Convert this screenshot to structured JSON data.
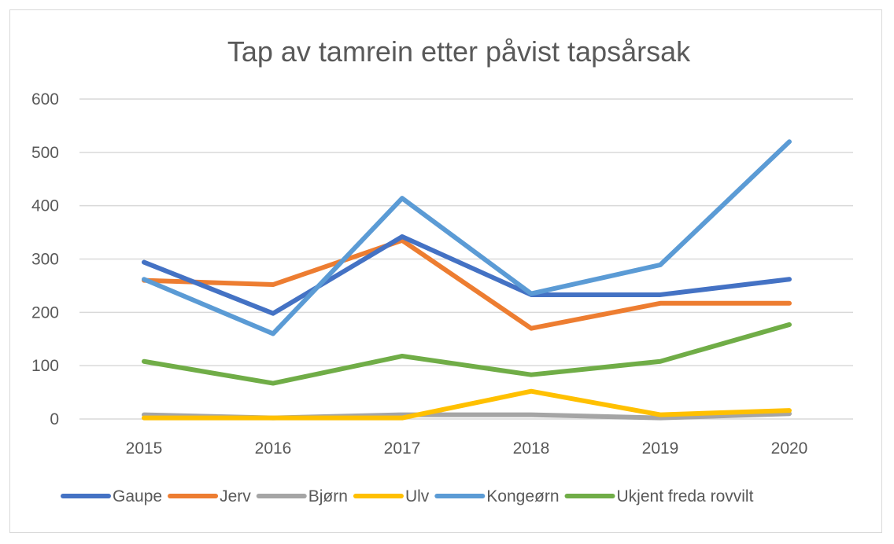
{
  "chart_data": {
    "type": "line",
    "title": "Tap av tamrein etter påvist tapsårsak",
    "xlabel": "",
    "ylabel": "",
    "x": [
      "2015",
      "2016",
      "2017",
      "2018",
      "2019",
      "2020"
    ],
    "ylim": [
      0,
      600
    ],
    "yticks": [
      "0",
      "100",
      "200",
      "300",
      "400",
      "500",
      "600"
    ],
    "grid": true,
    "legend_position": "bottom",
    "series": [
      {
        "name": "Gaupe",
        "color": "#4472C4",
        "values": [
          294,
          198,
          342,
          233,
          233,
          262
        ]
      },
      {
        "name": "Jerv",
        "color": "#ED7D31",
        "values": [
          260,
          252,
          335,
          170,
          217,
          217
        ]
      },
      {
        "name": "Bjørn",
        "color": "#A5A5A5",
        "values": [
          8,
          2,
          8,
          8,
          2,
          10
        ]
      },
      {
        "name": "Ulv",
        "color": "#FFC000",
        "values": [
          2,
          2,
          2,
          52,
          8,
          16
        ]
      },
      {
        "name": "Kongeørn",
        "color": "#5B9BD5",
        "values": [
          262,
          160,
          414,
          235,
          289,
          520
        ]
      },
      {
        "name": "Ukjent freda rovvilt",
        "color": "#70AD47",
        "values": [
          108,
          67,
          118,
          83,
          108,
          177
        ]
      }
    ]
  }
}
